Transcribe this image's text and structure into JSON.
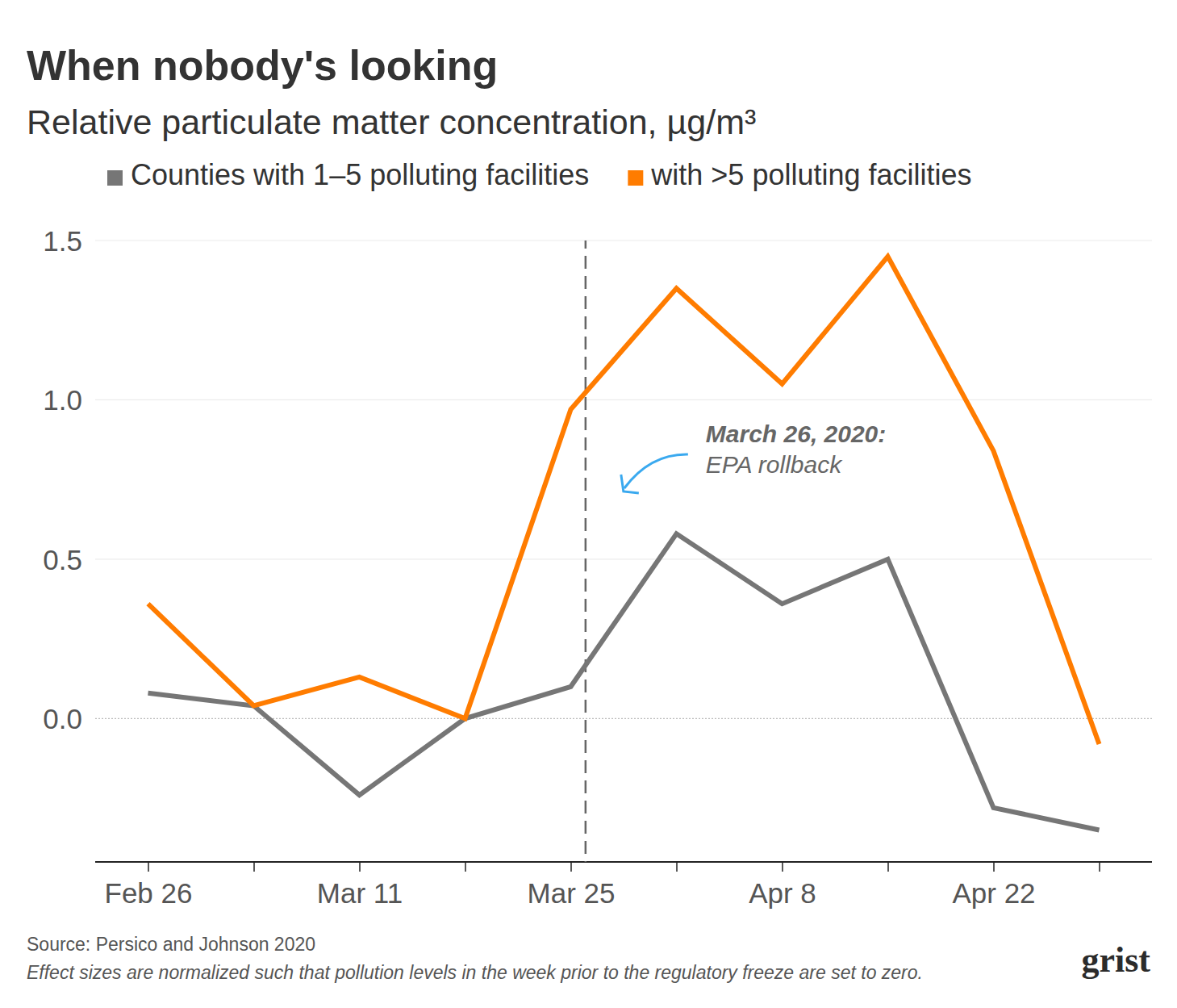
{
  "chart_data": {
    "type": "line",
    "title": "When nobody's looking",
    "subtitle": "Relative particulate matter concentration, µg/m³",
    "categories": [
      "Feb 26",
      null,
      "Mar 11",
      null,
      "Mar 25",
      null,
      "Apr 8",
      null,
      "Apr 22",
      null
    ],
    "series": [
      {
        "name": "Counties with 1–5 polluting facilities",
        "color": "#767676",
        "values": [
          0.08,
          0.04,
          -0.24,
          0.0,
          0.1,
          0.58,
          0.36,
          0.5,
          -0.28,
          -0.35
        ]
      },
      {
        "name": "with >5 polluting facilities",
        "color": "#ff7c00",
        "values": [
          0.36,
          0.04,
          0.13,
          0.0,
          0.97,
          1.35,
          1.05,
          1.45,
          0.84,
          -0.08
        ]
      }
    ],
    "ylim": [
      -0.45,
      1.5
    ],
    "yticks": [
      {
        "value": 0,
        "label": "0.0"
      },
      0.5,
      {
        "value": 1,
        "label": "1.0"
      },
      {
        "value": 1.5,
        "label": "1.5"
      }
    ],
    "grid": true,
    "legend": "top",
    "annotations": [
      {
        "x": 4.14,
        "label": "March 26, 2020:",
        "text": "EPA rollback"
      }
    ],
    "source": "Source: Persico and Johnson 2020",
    "note": "Effect sizes are normalized such that pollution levels in the week prior to the regulatory freeze are set to zero.",
    "logo": "grist"
  }
}
